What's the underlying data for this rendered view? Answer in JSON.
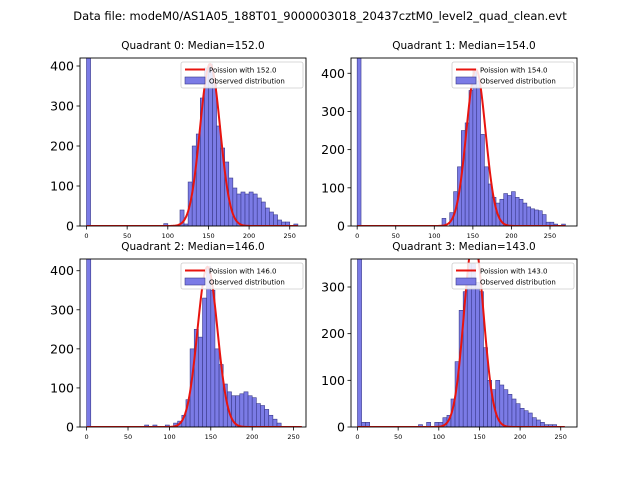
{
  "figure": {
    "suptitle": "Data file: modeM0/AS1A05_188T01_9000003018_20437cztM0_level2_quad_clean.evt"
  },
  "chart_data": [
    {
      "type": "bar",
      "title": "Quadrant 0: Median=152.0",
      "xlim": [
        -8,
        270
      ],
      "ylim": [
        0,
        420
      ],
      "xticks": [
        0,
        50,
        100,
        150,
        200,
        250
      ],
      "yticks": [
        0,
        100,
        200,
        300,
        400
      ],
      "bin_width": 5,
      "legend": {
        "placement": "top-right",
        "line": "Poission with 152.0",
        "bar": "Observed distribution"
      },
      "bins": [
        [
          0,
          420
        ],
        [
          95,
          6
        ],
        [
          115,
          40
        ],
        [
          120,
          5
        ],
        [
          125,
          110
        ],
        [
          130,
          200
        ],
        [
          135,
          230
        ],
        [
          140,
          320
        ],
        [
          145,
          395
        ],
        [
          150,
          405
        ],
        [
          155,
          360
        ],
        [
          160,
          250
        ],
        [
          165,
          195
        ],
        [
          170,
          160
        ],
        [
          175,
          120
        ],
        [
          180,
          95
        ],
        [
          185,
          80
        ],
        [
          190,
          85
        ],
        [
          195,
          80
        ],
        [
          200,
          85
        ],
        [
          205,
          80
        ],
        [
          210,
          70
        ],
        [
          215,
          60
        ],
        [
          220,
          45
        ],
        [
          225,
          35
        ],
        [
          230,
          28
        ],
        [
          235,
          15
        ],
        [
          240,
          10
        ],
        [
          245,
          10
        ],
        [
          255,
          5
        ]
      ],
      "fit_lambda": 152.0,
      "fit_peak": 405,
      "fit_range": [
        0,
        260
      ]
    },
    {
      "type": "bar",
      "title": "Quadrant 1: Median=154.0",
      "xlim": [
        -8,
        285
      ],
      "ylim": [
        0,
        440
      ],
      "xticks": [
        0,
        50,
        100,
        150,
        200,
        250
      ],
      "yticks": [
        0,
        100,
        200,
        300,
        400
      ],
      "bin_width": 5,
      "legend": {
        "placement": "top-right",
        "line": "Poission with 154.0",
        "bar": "Observed distribution"
      },
      "bins": [
        [
          0,
          440
        ],
        [
          110,
          20
        ],
        [
          120,
          35
        ],
        [
          125,
          90
        ],
        [
          130,
          155
        ],
        [
          135,
          250
        ],
        [
          140,
          270
        ],
        [
          145,
          355
        ],
        [
          150,
          410
        ],
        [
          155,
          380
        ],
        [
          160,
          240
        ],
        [
          165,
          155
        ],
        [
          170,
          110
        ],
        [
          175,
          75
        ],
        [
          180,
          60
        ],
        [
          185,
          70
        ],
        [
          190,
          85
        ],
        [
          195,
          80
        ],
        [
          200,
          90
        ],
        [
          205,
          75
        ],
        [
          210,
          70
        ],
        [
          215,
          60
        ],
        [
          220,
          50
        ],
        [
          225,
          45
        ],
        [
          230,
          42
        ],
        [
          235,
          40
        ],
        [
          240,
          30
        ],
        [
          245,
          10
        ],
        [
          250,
          10
        ],
        [
          255,
          5
        ],
        [
          265,
          5
        ]
      ],
      "fit_lambda": 154.0,
      "fit_peak": 410,
      "fit_range": [
        0,
        270
      ]
    },
    {
      "type": "bar",
      "title": "Quadrant 2: Median=146.0",
      "xlim": [
        -8,
        265
      ],
      "ylim": [
        0,
        430
      ],
      "xticks": [
        0,
        50,
        100,
        150,
        200,
        250
      ],
      "yticks": [
        0,
        100,
        200,
        300,
        400
      ],
      "bin_width": 5,
      "legend": {
        "placement": "top-right",
        "line": "Poission with 146.0",
        "bar": "Observed distribution"
      },
      "bins": [
        [
          0,
          430
        ],
        [
          70,
          5
        ],
        [
          80,
          5
        ],
        [
          95,
          5
        ],
        [
          105,
          10
        ],
        [
          110,
          15
        ],
        [
          115,
          30
        ],
        [
          120,
          70
        ],
        [
          125,
          200
        ],
        [
          130,
          250
        ],
        [
          135,
          230
        ],
        [
          140,
          330
        ],
        [
          145,
          410
        ],
        [
          150,
          350
        ],
        [
          155,
          200
        ],
        [
          160,
          160
        ],
        [
          165,
          110
        ],
        [
          170,
          90
        ],
        [
          175,
          80
        ],
        [
          180,
          80
        ],
        [
          185,
          85
        ],
        [
          190,
          90
        ],
        [
          195,
          80
        ],
        [
          200,
          75
        ],
        [
          205,
          60
        ],
        [
          210,
          55
        ],
        [
          215,
          45
        ],
        [
          220,
          30
        ],
        [
          225,
          20
        ],
        [
          230,
          10
        ]
      ],
      "fit_lambda": 146.0,
      "fit_peak": 410,
      "fit_range": [
        0,
        260
      ]
    },
    {
      "type": "bar",
      "title": "Quadrant 3: Median=143.0",
      "xlim": [
        -8,
        270
      ],
      "ylim": [
        0,
        360
      ],
      "xticks": [
        0,
        50,
        100,
        150,
        200,
        250
      ],
      "yticks": [
        0,
        100,
        200,
        300
      ],
      "bin_width": 5,
      "legend": {
        "placement": "top-right",
        "line": "Poission with 143.0",
        "bar": "Observed distribution"
      },
      "bins": [
        [
          0,
          360
        ],
        [
          5,
          10
        ],
        [
          10,
          10
        ],
        [
          75,
          5
        ],
        [
          85,
          10
        ],
        [
          95,
          10
        ],
        [
          100,
          10
        ],
        [
          105,
          20
        ],
        [
          110,
          25
        ],
        [
          115,
          60
        ],
        [
          120,
          140
        ],
        [
          125,
          250
        ],
        [
          130,
          290
        ],
        [
          135,
          350
        ],
        [
          140,
          350
        ],
        [
          145,
          310
        ],
        [
          150,
          290
        ],
        [
          155,
          170
        ],
        [
          160,
          100
        ],
        [
          165,
          80
        ],
        [
          170,
          100
        ],
        [
          175,
          90
        ],
        [
          180,
          80
        ],
        [
          185,
          70
        ],
        [
          190,
          60
        ],
        [
          195,
          50
        ],
        [
          200,
          40
        ],
        [
          205,
          35
        ],
        [
          210,
          30
        ],
        [
          215,
          20
        ],
        [
          220,
          15
        ],
        [
          225,
          10
        ],
        [
          230,
          5
        ],
        [
          235,
          5
        ],
        [
          240,
          5
        ]
      ],
      "fit_lambda": 143.0,
      "fit_peak": 405,
      "fit_range": [
        0,
        255
      ]
    }
  ],
  "colors": {
    "bar_fill": "#7b7be6",
    "bar_edge": "#3a3a8a",
    "fit_line": "#e8140f",
    "axis": "#000000"
  }
}
